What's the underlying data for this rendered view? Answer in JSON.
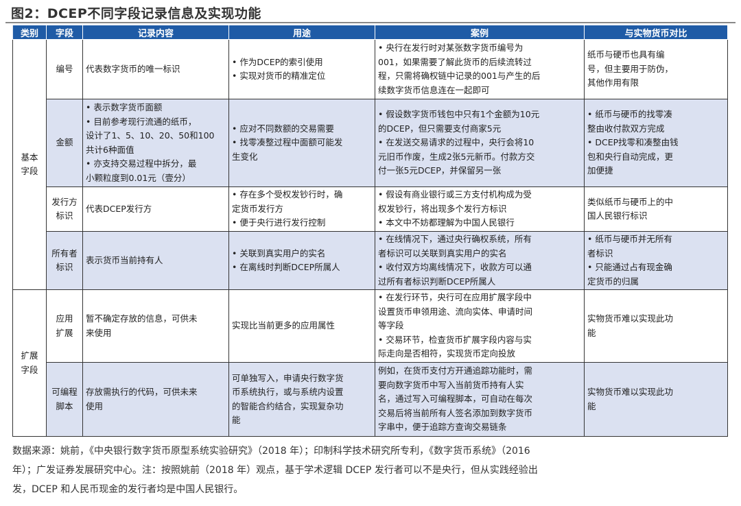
{
  "title": "图2：DCEP不同字段记录信息及实现功能",
  "headers": [
    "类别",
    "字段",
    "记录内容",
    "用途",
    "案例",
    "与实物货币对比"
  ],
  "groups": [
    {
      "category": "基本\n字段"
    },
    {
      "category": "扩展\n字段"
    }
  ],
  "rows": [
    {
      "field": "编号",
      "content": "代表数字货币的唯一标识",
      "usage": "• 作为DCEP的索引使用\n• 实现对货币的精准定位",
      "example": "• 央行在发行时对某张数字货币编号为\n001，如果需要了解此货币的后续流转过\n程，只需将确权链中记录的001与产生的后\n续数字货币信息连在一起即可",
      "compare": "纸币与硬币也具有编\n号，但主要用于防伪，\n其他作用有限"
    },
    {
      "field": "金额",
      "content": "• 表示数字货币面额\n• 目前参考现行流通的纸币，\n设计了1、5、10、20、50和100\n共计6种面值\n• 亦支持交易过程中拆分，最\n小颗粒度到0.01元（壹分）",
      "usage": "• 应对不同数额的交易需要\n• 找零凑整过程中面额可能发\n生变化",
      "example": "• 假设数字货币钱包中只有1个金额为10元\n的DCEP，但只需要支付商家5元\n• 在发送交易请求的过程中，央行会将10\n元旧币作废，生成2张5元新币。付款方交\n付一张5元DCEP，并保留另一张",
      "compare": "• 纸币与硬币的找零凑\n整由收付款双方完成\n• DCEP找零和凑整由钱\n包和央行自动完成，更\n加便捷"
    },
    {
      "field": "发行方\n标识",
      "content": "代表DCEP发行方",
      "usage": "• 存在多个受权发钞行时，确\n定货币发行方\n• 便于央行进行发行控制",
      "example": "• 假设有商业银行或三方支付机构成为受\n权发钞行，将出现多个发行方标识\n• 本文中不妨都理解为中国人民银行",
      "compare": "类似纸币与硬币上的中\n国人民银行标识"
    },
    {
      "field": "所有者\n标识",
      "content": "表示货币当前持有人",
      "usage": "• 关联到真实用户的实名\n• 在离线时判断DCEP所属人",
      "example": "• 在线情况下，通过央行确权系统，所有\n者标识可以关联到真实用户的实名\n• 收付双方均离线情况下，收款方可以通\n过所有者标识判断DCEP所属人",
      "compare": "• 纸币与硬币并无所有\n者标识\n• 只能通过占有现金确\n定货币的归属"
    },
    {
      "field": "应用\n扩展",
      "content": "暂不确定存放的信息，可供未\n来使用",
      "usage": "实现比当前更多的应用属性",
      "example": "• 在发行环节，央行可在应用扩展字段中\n设置货币申领用途、流向实体、申请时间\n等字段\n• 交易环节，检查货币扩展字段内容与实\n际走向是否相符，实现货币定向投放",
      "compare": "实物货币难以实现此功\n能"
    },
    {
      "field": "可编程\n脚本",
      "content": "存放需执行的代码，可供未来\n使用",
      "usage": "可单独写入，申请央行数字货\n币系统执行，或与系统内设置\n的智能合约结合，实现复杂功\n能",
      "example": "例如，在货币支付方开通追踪功能时，需\n要向数字货币中写入当前货币持有人实\n名，通过写入可编程脚本，可自动在每次\n交易后将当前所有人签名添加到数字货币\n字串中，便于追踪方查询交易链条",
      "compare": "实物货币难以实现此功\n能"
    }
  ],
  "footer": "数据来源：姚前，《中央银行数字货币原型系统实验研究》（2018 年）；印制科学技术研究所专利，《数字货币系统》（2016\n年）；广发证券发展研究中心。注：按照姚前（2018 年）观点，基于学术逻辑 DCEP 发行者可以不是央行，但从实践经验出\n发，DCEP 和人民币现金的发行者均是中国人民银行。",
  "colors": {
    "header": "#1f5ba6",
    "shade": "#dbe1f1"
  }
}
